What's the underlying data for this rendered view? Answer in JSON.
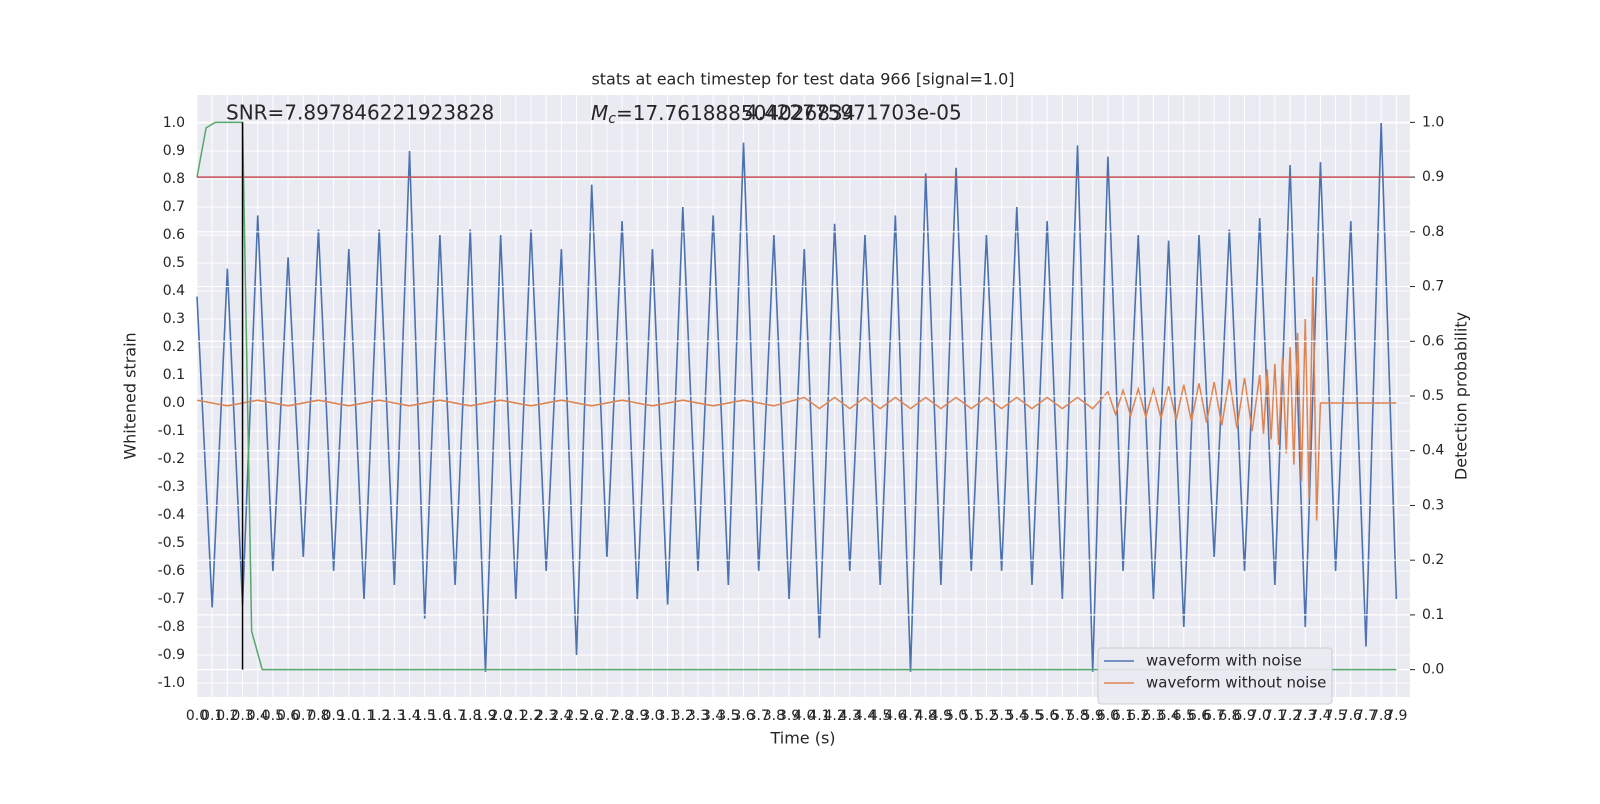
{
  "chart_data": {
    "type": "line",
    "title": "stats at each timestep for test data 966 [signal=1.0]",
    "xlabel": "Time (s)",
    "ylabel": "Whitened strain",
    "y2label": "Detection probability",
    "annotations": {
      "snr": "SNR=7.897846221923828",
      "mc_symbol": "M",
      "mc_sub": "c",
      "mc_value": "=17.761888504026834",
      "extra": "4.422775971703e-05"
    },
    "grid": true,
    "legend": "lower right",
    "xlim": [
      0,
      7.99
    ],
    "ylim": [
      -1.05,
      1.1
    ],
    "y2lim": [
      -0.05,
      1.05
    ],
    "xticks": [
      {
        "value": 0,
        "label": "0.0"
      },
      0.1,
      0.2,
      0.3,
      0.4,
      0.5,
      0.6,
      0.7,
      0.8,
      0.9,
      {
        "value": 1,
        "label": "1.0"
      },
      1.1,
      1.2,
      1.3,
      1.4,
      1.5,
      1.6,
      1.7,
      1.8,
      1.9,
      {
        "value": 2,
        "label": "2.0"
      },
      2.1,
      2.2,
      2.3,
      2.4,
      2.5,
      2.6,
      2.7,
      2.8,
      2.9,
      {
        "value": 3,
        "label": "3.0"
      },
      3.1,
      3.2,
      3.3,
      3.4,
      3.5,
      3.6,
      3.7,
      3.8,
      3.9,
      {
        "value": 4,
        "label": "4.0"
      },
      4.1,
      4.2,
      4.3,
      4.4,
      4.5,
      4.6,
      4.7,
      4.8,
      4.9,
      {
        "value": 5,
        "label": "5.0"
      },
      5.1,
      5.2,
      5.3,
      5.4,
      5.5,
      5.6,
      5.7,
      5.8,
      5.9,
      {
        "value": 6,
        "label": "6.0"
      },
      6.1,
      6.2,
      6.3,
      6.4,
      6.5,
      6.6,
      6.7,
      6.8,
      6.9,
      {
        "value": 7,
        "label": "7.0"
      },
      7.1,
      7.2,
      7.3,
      7.4,
      7.5,
      7.6,
      7.7,
      7.8,
      7.9
    ],
    "yticks": [
      {
        "value": -1,
        "label": "-1.0"
      },
      -0.9,
      -0.8,
      -0.7,
      -0.6,
      -0.5,
      -0.4,
      -0.3,
      -0.2,
      -0.1,
      {
        "value": 0,
        "label": "0.0"
      },
      0.1,
      0.2,
      0.3,
      0.4,
      0.5,
      0.6,
      0.7,
      0.8,
      0.9,
      {
        "value": 1,
        "label": "1.0"
      }
    ],
    "y2ticks": [
      {
        "value": 0,
        "label": "0.0"
      },
      0.1,
      0.2,
      0.3,
      0.4,
      0.5,
      0.6,
      0.7,
      0.8,
      0.9,
      {
        "value": 1,
        "label": "1.0"
      }
    ],
    "series": [
      {
        "name": "waveform with noise",
        "color": "#4c72b0",
        "x": [
          0,
          0.1,
          0.2,
          0.3,
          0.4,
          0.5,
          0.6,
          0.7,
          0.8,
          0.9,
          1,
          1.1,
          1.2,
          1.3,
          1.4,
          1.5,
          1.6,
          1.7,
          1.8,
          1.9,
          2,
          2.1,
          2.2,
          2.3,
          2.4,
          2.5,
          2.6,
          2.7,
          2.8,
          2.9,
          3,
          3.1,
          3.2,
          3.3,
          3.4,
          3.5,
          3.6,
          3.7,
          3.8,
          3.9,
          4,
          4.1,
          4.2,
          4.3,
          4.4,
          4.5,
          4.6,
          4.7,
          4.8,
          4.9,
          5,
          5.1,
          5.2,
          5.3,
          5.4,
          5.5,
          5.6,
          5.7,
          5.8,
          5.9,
          6,
          6.1,
          6.2,
          6.3,
          6.4,
          6.5,
          6.6,
          6.7,
          6.8,
          6.9,
          7,
          7.1,
          7.2,
          7.3,
          7.4,
          7.5,
          7.6,
          7.7,
          7.8,
          7.9
        ],
        "values": [
          0.38,
          -0.73,
          0.48,
          -0.72,
          0.67,
          -0.6,
          0.52,
          -0.55,
          0.62,
          -0.6,
          0.55,
          -0.7,
          0.62,
          -0.65,
          0.9,
          -0.77,
          0.6,
          -0.65,
          0.62,
          -0.96,
          0.6,
          -0.7,
          0.62,
          -0.6,
          0.55,
          -0.9,
          0.78,
          -0.55,
          0.65,
          -0.7,
          0.55,
          -0.72,
          0.7,
          -0.6,
          0.67,
          -0.65,
          0.93,
          -0.6,
          0.6,
          -0.7,
          0.55,
          -0.84,
          0.64,
          -0.6,
          0.6,
          -0.65,
          0.67,
          -0.96,
          0.82,
          -0.65,
          0.84,
          -0.6,
          0.6,
          -0.6,
          0.7,
          -0.65,
          0.65,
          -0.7,
          0.92,
          -0.96,
          0.88,
          -0.6,
          0.6,
          -0.7,
          0.58,
          -0.8,
          0.6,
          -0.55,
          0.62,
          -0.6,
          0.66,
          -0.65,
          0.85,
          -0.8,
          0.86,
          -0.6,
          0.65,
          -0.87,
          1.0,
          -0.7
        ]
      },
      {
        "name": "waveform without noise",
        "color": "#dd8452",
        "x": [
          0,
          0.2,
          0.4,
          0.6,
          0.8,
          1,
          1.2,
          1.4,
          1.6,
          1.8,
          2,
          2.2,
          2.4,
          2.6,
          2.8,
          3,
          3.2,
          3.4,
          3.6,
          3.8,
          4,
          4.1,
          4.2,
          4.3,
          4.4,
          4.5,
          4.6,
          4.7,
          4.8,
          4.9,
          5,
          5.1,
          5.2,
          5.3,
          5.4,
          5.5,
          5.6,
          5.7,
          5.8,
          5.9,
          6,
          6.05,
          6.1,
          6.15,
          6.2,
          6.25,
          6.3,
          6.35,
          6.4,
          6.45,
          6.5,
          6.55,
          6.6,
          6.65,
          6.7,
          6.75,
          6.8,
          6.85,
          6.9,
          6.95,
          7,
          7.025,
          7.05,
          7.075,
          7.1,
          7.125,
          7.15,
          7.175,
          7.2,
          7.225,
          7.25,
          7.275,
          7.3,
          7.325,
          7.35,
          7.375,
          7.4,
          7.9
        ],
        "values": [
          0.01,
          -0.01,
          0.01,
          -0.01,
          0.01,
          -0.01,
          0.01,
          -0.01,
          0.01,
          -0.01,
          0.01,
          -0.01,
          0.01,
          -0.01,
          0.01,
          -0.01,
          0.01,
          -0.01,
          0.01,
          -0.01,
          0.02,
          -0.02,
          0.02,
          -0.02,
          0.02,
          -0.02,
          0.02,
          -0.02,
          0.02,
          -0.02,
          0.02,
          -0.02,
          0.02,
          -0.02,
          0.02,
          -0.02,
          0.02,
          -0.02,
          0.02,
          -0.02,
          0.04,
          -0.04,
          0.045,
          -0.045,
          0.05,
          -0.05,
          0.05,
          -0.055,
          0.06,
          -0.06,
          0.065,
          -0.065,
          0.07,
          -0.07,
          0.075,
          -0.08,
          0.085,
          -0.09,
          0.09,
          -0.1,
          0.1,
          -0.11,
          0.12,
          -0.13,
          0.14,
          -0.15,
          0.16,
          -0.18,
          0.2,
          -0.22,
          0.25,
          -0.28,
          0.3,
          -0.34,
          0.45,
          -0.42,
          0,
          0
        ]
      },
      {
        "color": "#55a868",
        "axis": "y2",
        "x": [
          0,
          0.06,
          0.12,
          0.3,
          0.36,
          0.43,
          7.9
        ],
        "values": [
          0.9,
          0.99,
          1.0,
          1.0,
          0.07,
          0,
          0
        ]
      },
      {
        "color": "#c44e52",
        "axis": "y2",
        "x": [
          0,
          7.99
        ],
        "values": [
          0.9,
          0.9
        ]
      },
      {
        "color": "#000000",
        "axis": "y2",
        "x": [
          0.3,
          0.3
        ],
        "values": [
          0,
          1
        ]
      }
    ]
  }
}
